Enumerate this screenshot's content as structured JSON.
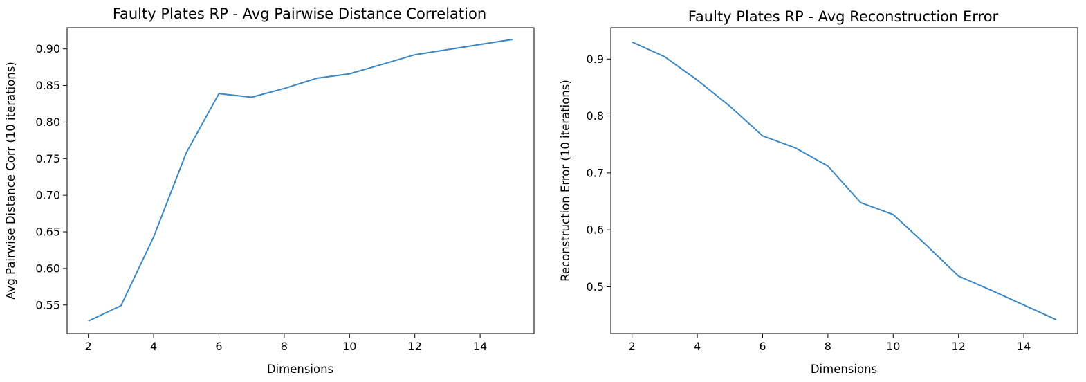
{
  "chart_data": [
    {
      "type": "line",
      "title": "Faulty Plates RP - Avg Pairwise Distance Correlation",
      "xlabel": "Dimensions",
      "ylabel": "Avg Pairwise Distance Corr (10 iterations)",
      "xlim": [
        1.35,
        15.65
      ],
      "ylim": [
        0.511,
        0.929
      ],
      "xticks": [
        2,
        4,
        6,
        8,
        10,
        12,
        14
      ],
      "xtick_labels": [
        "2",
        "4",
        "6",
        "8",
        "10",
        "12",
        "14"
      ],
      "yticks": [
        0.55,
        0.6,
        0.65,
        0.7,
        0.75,
        0.8,
        0.85,
        0.9
      ],
      "ytick_labels": [
        "0.55",
        "0.60",
        "0.65",
        "0.70",
        "0.75",
        "0.80",
        "0.85",
        "0.90"
      ],
      "grid": false,
      "color": "#3a87c4",
      "series": [
        {
          "x": [
            2,
            3,
            4,
            5,
            6,
            7,
            8,
            9,
            10,
            11,
            12,
            13,
            14,
            15
          ],
          "y": [
            0.528,
            0.549,
            0.643,
            0.758,
            0.839,
            0.834,
            0.846,
            0.86,
            0.866,
            0.879,
            0.892,
            0.899,
            0.906,
            0.913
          ]
        }
      ]
    },
    {
      "type": "line",
      "title": "Faulty Plates RP - Avg Reconstruction Error",
      "xlabel": "Dimensions",
      "ylabel": "Reconstruction Error (10 iterations)",
      "xlim": [
        1.35,
        15.65
      ],
      "ylim": [
        0.418,
        0.955
      ],
      "xticks": [
        2,
        4,
        6,
        8,
        10,
        12,
        14
      ],
      "xtick_labels": [
        "2",
        "4",
        "6",
        "8",
        "10",
        "12",
        "14"
      ],
      "yticks": [
        0.5,
        0.6,
        0.7,
        0.8,
        0.9
      ],
      "ytick_labels": [
        "0.5",
        "0.6",
        "0.7",
        "0.8",
        "0.9"
      ],
      "grid": false,
      "color": "#3a87c4",
      "series": [
        {
          "x": [
            2,
            3,
            4,
            5,
            6,
            7,
            8,
            9,
            10,
            11,
            12,
            13,
            14,
            15
          ],
          "y": [
            0.93,
            0.904,
            0.863,
            0.817,
            0.765,
            0.744,
            0.712,
            0.648,
            0.627,
            0.574,
            0.519,
            0.494,
            0.468,
            0.442
          ]
        }
      ]
    }
  ]
}
